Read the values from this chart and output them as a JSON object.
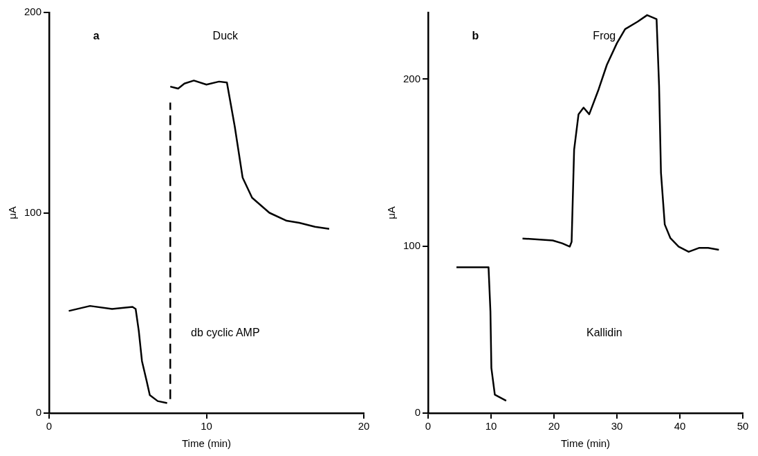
{
  "chart_data": [
    {
      "type": "line",
      "title": "Duck",
      "xlabel": "Time (min)",
      "ylabel": "μA",
      "annotations": [
        "a",
        "db cyclic AMP"
      ],
      "xlim": [
        0,
        20
      ],
      "xticks": [
        0,
        10,
        20
      ],
      "ylim": [
        0,
        200
      ],
      "yticks": [
        0,
        100,
        200
      ],
      "grid": false,
      "legend": false,
      "marker": "none",
      "line_style": "solid",
      "series": [
        {
          "color": "#000000",
          "x": [
            1.25,
            2.6,
            4.0,
            5.3,
            5.5,
            5.7,
            5.9,
            6.2,
            6.4,
            6.9,
            7.5
          ],
          "values": [
            51,
            53.5,
            52,
            53,
            52,
            41,
            26,
            16,
            9,
            6,
            5
          ]
        },
        {
          "color": "#000000",
          "line_style": "dashed",
          "x": [
            7.7,
            7.7
          ],
          "values": [
            7,
            155
          ]
        },
        {
          "color": "#000000",
          "x": [
            7.7,
            8.2,
            8.6,
            9.2,
            10.0,
            10.8,
            11.3,
            11.8,
            12.3,
            12.9,
            14.0,
            15.1,
            15.9,
            16.9,
            17.8
          ],
          "values": [
            163,
            162,
            164.5,
            166,
            164,
            165.5,
            165,
            143,
            117.5,
            107.5,
            100,
            96,
            95,
            93,
            92
          ]
        }
      ]
    },
    {
      "type": "line",
      "title": "Frog",
      "xlabel": "Time (min)",
      "ylabel": "μA",
      "annotations": [
        "b",
        "Kallidin"
      ],
      "xlim": [
        0,
        50
      ],
      "xticks": [
        0,
        10,
        20,
        30,
        40,
        50
      ],
      "ylim": [
        0,
        240
      ],
      "yticks": [
        0,
        100,
        200
      ],
      "grid": false,
      "legend": false,
      "marker": "none",
      "line_style": "solid",
      "series": [
        {
          "color": "#000000",
          "x": [
            4.5,
            9.6,
            9.9,
            10.05,
            10.6,
            12.4
          ],
          "values": [
            87.4,
            87.4,
            61,
            27,
            11,
            7.4
          ]
        },
        {
          "color": "#000000",
          "x": [
            15.0,
            19.8,
            21.3,
            22.5,
            22.8,
            23.2,
            23.9,
            24.7,
            25.6,
            27.1,
            28.4,
            30.0,
            31.3,
            33.3,
            34.8,
            36.3,
            36.7,
            37.0,
            37.6,
            38.5,
            39.8,
            41.4,
            43.1,
            44.5,
            46.2
          ],
          "values": [
            104.6,
            103.4,
            101.7,
            99.7,
            102.6,
            157.8,
            179,
            183,
            179,
            194,
            208.6,
            221.6,
            230,
            234.5,
            238.4,
            236,
            196,
            144,
            113,
            104.8,
            99.7,
            96.6,
            99,
            99,
            97.8
          ]
        }
      ]
    }
  ]
}
